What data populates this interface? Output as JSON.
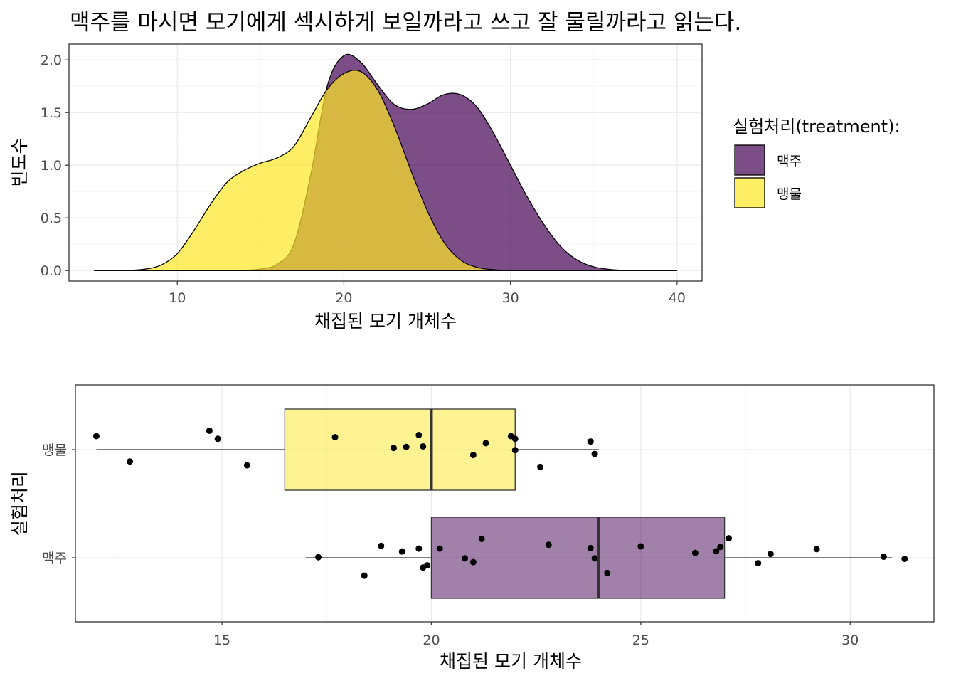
{
  "title": "맥주를 마시면 모기에게 섹시하게 보일까라고 쓰고 잘 물릴까라고 읽는다.",
  "colors": {
    "beer": "#440154",
    "water": "#FDE725",
    "outline": "#000000",
    "box_line": "#333333",
    "whisker": "#333333",
    "point": "#000000"
  },
  "chart_data": [
    {
      "type": "area",
      "subtype": "density",
      "title": "",
      "xlabel": "채집된 모기 개체수",
      "ylabel": "빈도수",
      "xlim": [
        3.5,
        41.5
      ],
      "ylim": [
        -0.1,
        2.15
      ],
      "x_ticks": [
        10,
        20,
        30,
        40
      ],
      "x_tick_labels": [
        "10",
        "20",
        "30",
        "40"
      ],
      "y_ticks": [
        0,
        0.5,
        1,
        1.5,
        2
      ],
      "y_tick_labels": [
        "0.0",
        "0.5",
        "1.0",
        "1.5",
        "2.0"
      ],
      "grid": true,
      "legend": {
        "title": "실험처리(treatment):",
        "placement": "right",
        "entries": [
          {
            "label": "맥주",
            "color": "#440154"
          },
          {
            "label": "맹물",
            "color": "#FDE725"
          }
        ]
      },
      "series": [
        {
          "name": "맥주",
          "color": "#440154",
          "x": [
            5,
            10,
            12,
            14,
            15,
            16,
            17,
            18,
            19,
            20,
            21,
            22,
            23,
            24,
            25,
            26,
            27,
            28,
            29,
            30,
            31,
            32,
            33,
            34,
            35,
            36,
            37,
            38,
            40
          ],
          "y": [
            0,
            0,
            0,
            0.003,
            0.015,
            0.06,
            0.25,
            0.9,
            1.75,
            2.04,
            1.98,
            1.77,
            1.58,
            1.53,
            1.58,
            1.67,
            1.67,
            1.55,
            1.3,
            1.0,
            0.7,
            0.44,
            0.23,
            0.1,
            0.035,
            0.01,
            0.002,
            0,
            0
          ]
        },
        {
          "name": "맹물",
          "color": "#FDE725",
          "x": [
            5,
            7,
            8,
            9,
            10,
            11,
            12,
            13,
            14,
            15,
            16,
            17,
            18,
            19,
            20,
            21,
            22,
            23,
            24,
            25,
            26,
            27,
            28,
            29,
            30,
            33,
            40
          ],
          "y": [
            0,
            0.002,
            0.012,
            0.05,
            0.16,
            0.38,
            0.63,
            0.84,
            0.95,
            1.02,
            1.07,
            1.18,
            1.45,
            1.72,
            1.87,
            1.89,
            1.72,
            1.38,
            0.96,
            0.57,
            0.27,
            0.1,
            0.03,
            0.008,
            0.002,
            0,
            0
          ]
        }
      ]
    },
    {
      "type": "scatter",
      "subtype": "boxplot",
      "orientation": "horizontal",
      "title": "",
      "xlabel": "채집된 모기 개체수",
      "ylabel": "실험처리",
      "xlim": [
        11.5,
        32.0
      ],
      "x_ticks": [
        15,
        20,
        25,
        30
      ],
      "x_tick_labels": [
        "15",
        "20",
        "25",
        "30"
      ],
      "categories": [
        "맥주",
        "맹물"
      ],
      "grid": true,
      "boxes": [
        {
          "name": "맥주",
          "color": "#440154",
          "min": 17,
          "q1": 20,
          "median": 24,
          "q3": 27,
          "max": 31
        },
        {
          "name": "맹물",
          "color": "#FDE725",
          "min": 12,
          "q1": 16.5,
          "median": 20,
          "q3": 22,
          "max": 24
        }
      ],
      "points": [
        {
          "group": "맥주",
          "x": [
            17.3,
            18.4,
            18.8,
            19.3,
            19.7,
            19.8,
            19.9,
            20.2,
            20.8,
            21.0,
            21.2,
            22.8,
            23.8,
            23.9,
            24.2,
            25.0,
            26.3,
            26.8,
            26.9,
            27.1,
            27.8,
            28.1,
            29.2,
            30.8,
            31.3
          ],
          "jitter": [
            0.005,
            -0.165,
            0.11,
            0.058,
            0.085,
            -0.09,
            -0.07,
            0.085,
            -0.005,
            -0.04,
            0.175,
            0.12,
            0.09,
            -0.005,
            -0.14,
            0.105,
            0.045,
            0.06,
            0.1,
            0.18,
            -0.05,
            0.035,
            0.08,
            0.01,
            -0.01
          ]
        },
        {
          "group": "맹물",
          "x": [
            12.0,
            12.8,
            14.7,
            14.9,
            15.6,
            17.7,
            19.1,
            19.4,
            19.7,
            19.8,
            21.0,
            21.3,
            21.9,
            22.0,
            22.0,
            22.6,
            23.8,
            23.9
          ],
          "jitter": [
            0.125,
            -0.11,
            0.175,
            0.1,
            -0.145,
            0.115,
            0.015,
            0.025,
            0.135,
            0.03,
            -0.05,
            0.06,
            0.125,
            0.1,
            -0.005,
            -0.16,
            0.075,
            -0.04
          ]
        }
      ]
    }
  ]
}
